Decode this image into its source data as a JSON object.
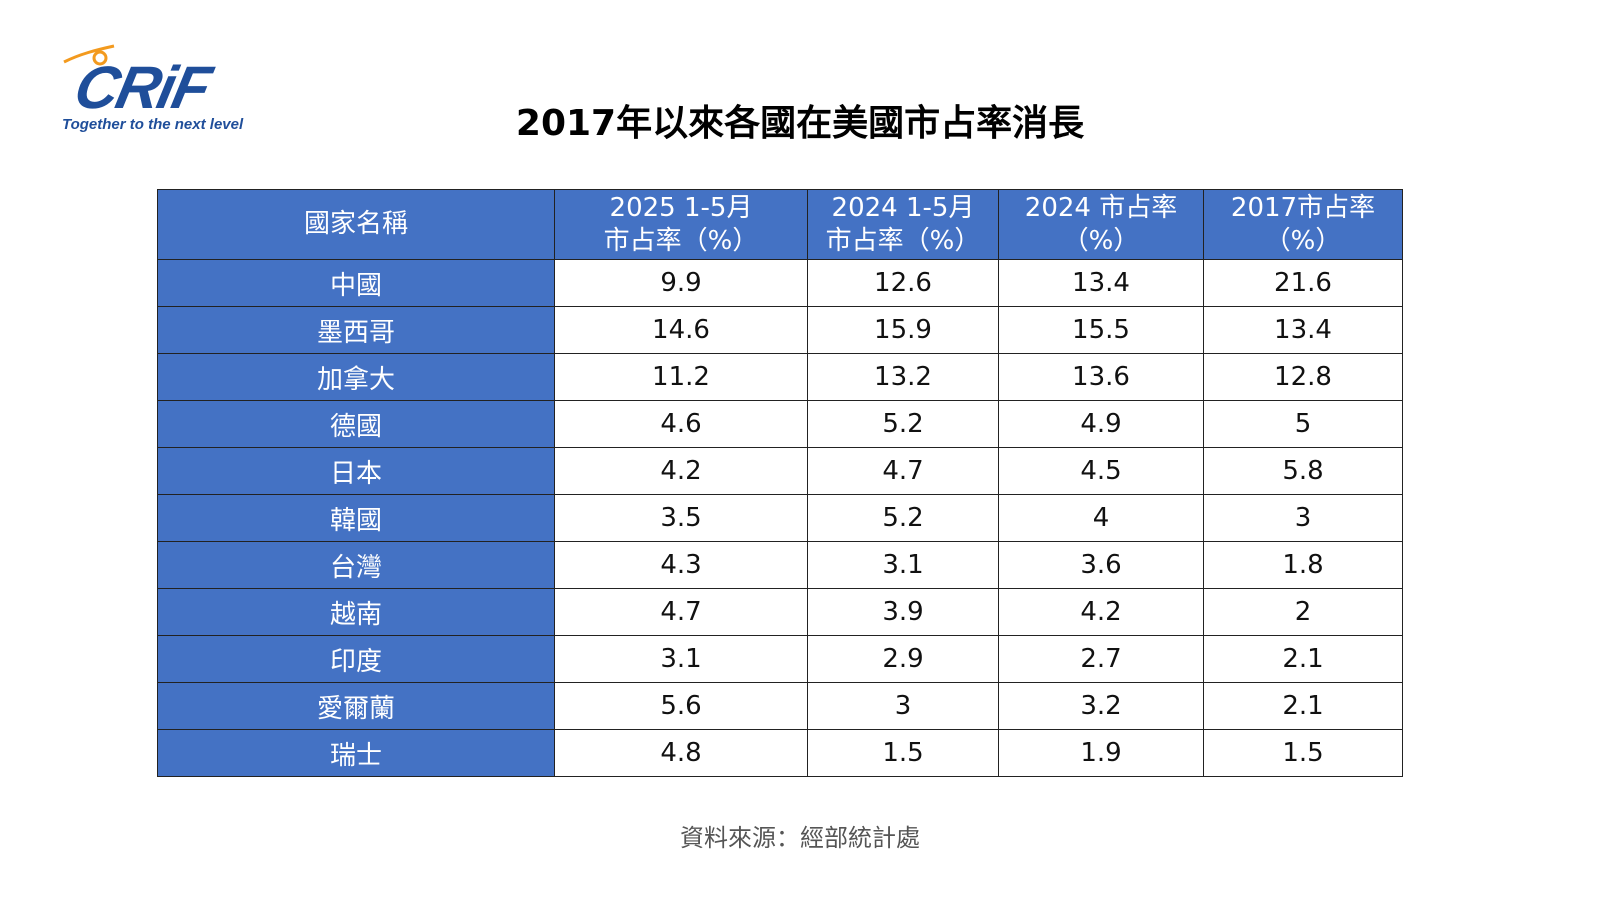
{
  "logo": {
    "wordmark": "CRiF",
    "tagline": "Together to the next level",
    "colors": {
      "blue": "#1f4e9a",
      "orange": "#f39a1e"
    }
  },
  "title": "2017年以來各國在美國市占率消長",
  "table": {
    "headers": [
      {
        "line1": "國家名稱",
        "line2": ""
      },
      {
        "line1": "2025 1-5月",
        "line2": "市占率（%）"
      },
      {
        "line1": "2024 1-5月",
        "line2": "市占率（%）"
      },
      {
        "line1": "2024 市占率",
        "line2": "（%）"
      },
      {
        "line1": "2017市占率",
        "line2": "（%）"
      }
    ],
    "rows": [
      [
        "中國",
        "9.9",
        "12.6",
        "13.4",
        "21.6"
      ],
      [
        "墨西哥",
        "14.6",
        "15.9",
        "15.5",
        "13.4"
      ],
      [
        "加拿大",
        "11.2",
        "13.2",
        "13.6",
        "12.8"
      ],
      [
        "德國",
        "4.6",
        "5.2",
        "4.9",
        "5"
      ],
      [
        "日本",
        "4.2",
        "4.7",
        "4.5",
        "5.8"
      ],
      [
        "韓國",
        "3.5",
        "5.2",
        "4",
        "3"
      ],
      [
        "台灣",
        "4.3",
        "3.1",
        "3.6",
        "1.8"
      ],
      [
        "越南",
        "4.7",
        "3.9",
        "4.2",
        "2"
      ],
      [
        "印度",
        "3.1",
        "2.9",
        "2.7",
        "2.1"
      ],
      [
        "愛爾蘭",
        "5.6",
        "3",
        "3.2",
        "2.1"
      ],
      [
        "瑞士",
        "4.8",
        "1.5",
        "1.9",
        "1.5"
      ]
    ],
    "header_color": "#4472c4"
  },
  "source": "資料來源：經部統計處"
}
